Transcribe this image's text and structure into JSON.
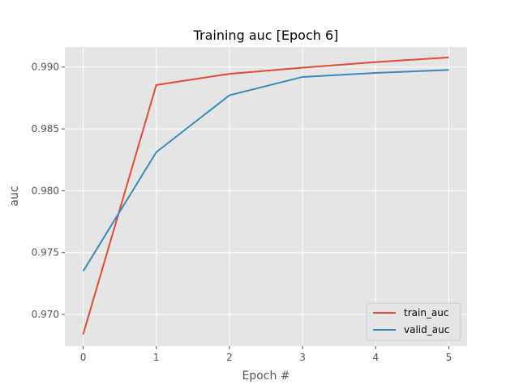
{
  "chart_data": {
    "type": "line",
    "title": "Training auc [Epoch 6]",
    "xlabel": "Epoch #",
    "ylabel": "auc",
    "x": [
      0,
      1,
      2,
      3,
      4,
      5
    ],
    "series": [
      {
        "name": "train_auc",
        "color": "#E24A33",
        "values": [
          0.9684,
          0.98855,
          0.98945,
          0.98995,
          0.9904,
          0.99078
        ]
      },
      {
        "name": "valid_auc",
        "color": "#348ABD",
        "values": [
          0.9735,
          0.98312,
          0.98772,
          0.9892,
          0.98952,
          0.98977
        ]
      }
    ],
    "xticks": [
      "0",
      "1",
      "2",
      "3",
      "4",
      "5"
    ],
    "yticks": [
      "0.970",
      "0.975",
      "0.980",
      "0.985",
      "0.990"
    ],
    "xlim": [
      -0.25,
      5.25
    ],
    "ylim": [
      0.96745,
      0.99162
    ],
    "grid": true,
    "legend_position": "lower right",
    "background": "#E5E5E5"
  }
}
